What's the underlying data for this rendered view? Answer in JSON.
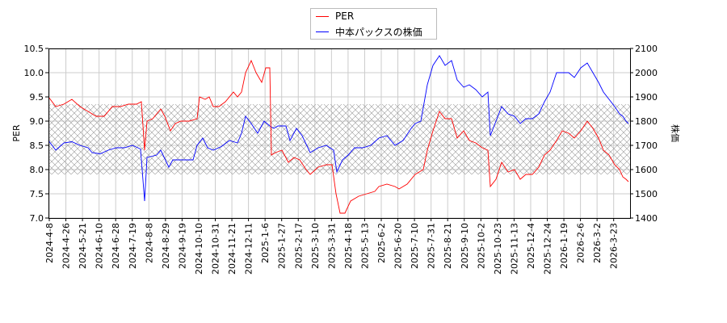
{
  "chart_data": {
    "type": "line",
    "title": "",
    "xlabel": "",
    "ylabel": "PER",
    "y2label": "株価",
    "ylim": [
      7.0,
      10.5
    ],
    "y2lim": [
      1400,
      2100
    ],
    "yticks": [
      "7.0",
      "7.5",
      "8.0",
      "8.5",
      "9.0",
      "9.5",
      "10.0",
      "10.5"
    ],
    "y2ticks": [
      "1400",
      "1500",
      "1600",
      "1700",
      "1800",
      "1900",
      "2000",
      "2100"
    ],
    "xticks": [
      "2024-4-8",
      "2024-4-26",
      "2024-5-21",
      "2024-6-10",
      "2024-6-28",
      "2024-7-19",
      "2024-8-8",
      "2024-8-29",
      "2024-9-19",
      "2024-10-10",
      "2024-10-31",
      "2024-11-21",
      "2024-12-11",
      "2025-1-6",
      "2025-1-27",
      "2025-2-17",
      "2025-3-10",
      "2025-3-31",
      "2025-4-18",
      "2025-5-13",
      "2025-6-2",
      "2025-6-20",
      "2025-7-10",
      "2025-7-31",
      "2025-8-21",
      "2025-9-10",
      "2025-10-2",
      "2025-10-23",
      "2025-11-13",
      "2025-12-4",
      "2025-12-24",
      "2026-1-19",
      "2026-2-6",
      "2026-3-2",
      "2026-3-23"
    ],
    "x_unit": "trading-day index (approx.)",
    "x_range": [
      0,
      720
    ],
    "band_per": [
      7.9,
      9.35
    ],
    "grid": true,
    "legend_position": "top-center",
    "series": [
      {
        "name": "PER",
        "color": "#ff0000",
        "axis": "left",
        "x": [
          0,
          9,
          19,
          29,
          39,
          49,
          59,
          69,
          79,
          89,
          99,
          109,
          115,
          119,
          122,
          129,
          139,
          144,
          151,
          157,
          164,
          174,
          184,
          187,
          194,
          199,
          204,
          211,
          219,
          229,
          234,
          239,
          244,
          251,
          257,
          264,
          269,
          274,
          276,
          281,
          289,
          297,
          304,
          311,
          319,
          324,
          334,
          344,
          351,
          356,
          361,
          367,
          374,
          384,
          394,
          404,
          409,
          419,
          429,
          434,
          444,
          454,
          464,
          469,
          476,
          484,
          491,
          499,
          506,
          514,
          521,
          529,
          537,
          544,
          547,
          554,
          561,
          569,
          577,
          584,
          591,
          599,
          607,
          614,
          621,
          629,
          636,
          644,
          651,
          659,
          667,
          674,
          681,
          687,
          694,
          701,
          707,
          711,
          715,
          718
        ],
        "y": [
          9.5,
          9.3,
          9.35,
          9.45,
          9.3,
          9.2,
          9.1,
          9.1,
          9.3,
          9.3,
          9.35,
          9.35,
          9.4,
          8.4,
          9.0,
          9.05,
          9.25,
          9.1,
          8.8,
          8.95,
          9.0,
          9.0,
          9.05,
          9.5,
          9.45,
          9.5,
          9.3,
          9.3,
          9.4,
          9.6,
          9.5,
          9.6,
          10.0,
          10.25,
          10.0,
          9.8,
          10.1,
          10.1,
          8.3,
          8.35,
          8.4,
          8.15,
          8.25,
          8.2,
          8.0,
          7.9,
          8.05,
          8.1,
          8.1,
          7.5,
          7.1,
          7.1,
          7.35,
          7.45,
          7.5,
          7.55,
          7.65,
          7.7,
          7.65,
          7.6,
          7.7,
          7.9,
          8.0,
          8.4,
          8.8,
          9.2,
          9.05,
          9.05,
          8.65,
          8.8,
          8.6,
          8.55,
          8.45,
          8.4,
          7.65,
          7.8,
          8.15,
          7.95,
          8.0,
          7.8,
          7.9,
          7.9,
          8.05,
          8.3,
          8.4,
          8.6,
          8.8,
          8.75,
          8.65,
          8.8,
          9.0,
          8.85,
          8.65,
          8.4,
          8.3,
          8.1,
          8.0,
          7.85,
          7.8,
          7.75
        ]
      },
      {
        "name": "中本パックスの株価",
        "color": "#0000ff",
        "axis": "right",
        "x": [
          0,
          9,
          19,
          29,
          39,
          49,
          54,
          64,
          74,
          84,
          94,
          104,
          114,
          119,
          122,
          134,
          139,
          149,
          154,
          164,
          179,
          184,
          191,
          197,
          204,
          214,
          224,
          234,
          239,
          244,
          251,
          259,
          267,
          274,
          279,
          284,
          294,
          299,
          307,
          314,
          324,
          334,
          344,
          353,
          357,
          364,
          371,
          379,
          389,
          399,
          409,
          419,
          429,
          439,
          449,
          454,
          461,
          469,
          476,
          484,
          491,
          499,
          506,
          514,
          521,
          529,
          537,
          544,
          547,
          554,
          561,
          569,
          577,
          584,
          591,
          599,
          607,
          614,
          621,
          629,
          636,
          644,
          651,
          659,
          667,
          674,
          681,
          687,
          694,
          701,
          707,
          711,
          715,
          718
        ],
        "y": [
          1720,
          1680,
          1710,
          1715,
          1700,
          1690,
          1670,
          1665,
          1680,
          1690,
          1690,
          1700,
          1685,
          1470,
          1650,
          1660,
          1680,
          1610,
          1640,
          1640,
          1640,
          1700,
          1730,
          1690,
          1680,
          1695,
          1720,
          1710,
          1750,
          1820,
          1790,
          1750,
          1800,
          1780,
          1770,
          1780,
          1780,
          1720,
          1770,
          1740,
          1670,
          1690,
          1700,
          1680,
          1590,
          1640,
          1660,
          1690,
          1690,
          1700,
          1730,
          1740,
          1700,
          1720,
          1770,
          1790,
          1800,
          1950,
          2030,
          2070,
          2030,
          2050,
          1970,
          1940,
          1950,
          1930,
          1900,
          1920,
          1740,
          1800,
          1860,
          1830,
          1820,
          1790,
          1810,
          1810,
          1830,
          1880,
          1920,
          2000,
          2000,
          2000,
          1980,
          2020,
          2040,
          2000,
          1960,
          1920,
          1890,
          1860,
          1830,
          1820,
          1800,
          1790
        ]
      }
    ]
  }
}
